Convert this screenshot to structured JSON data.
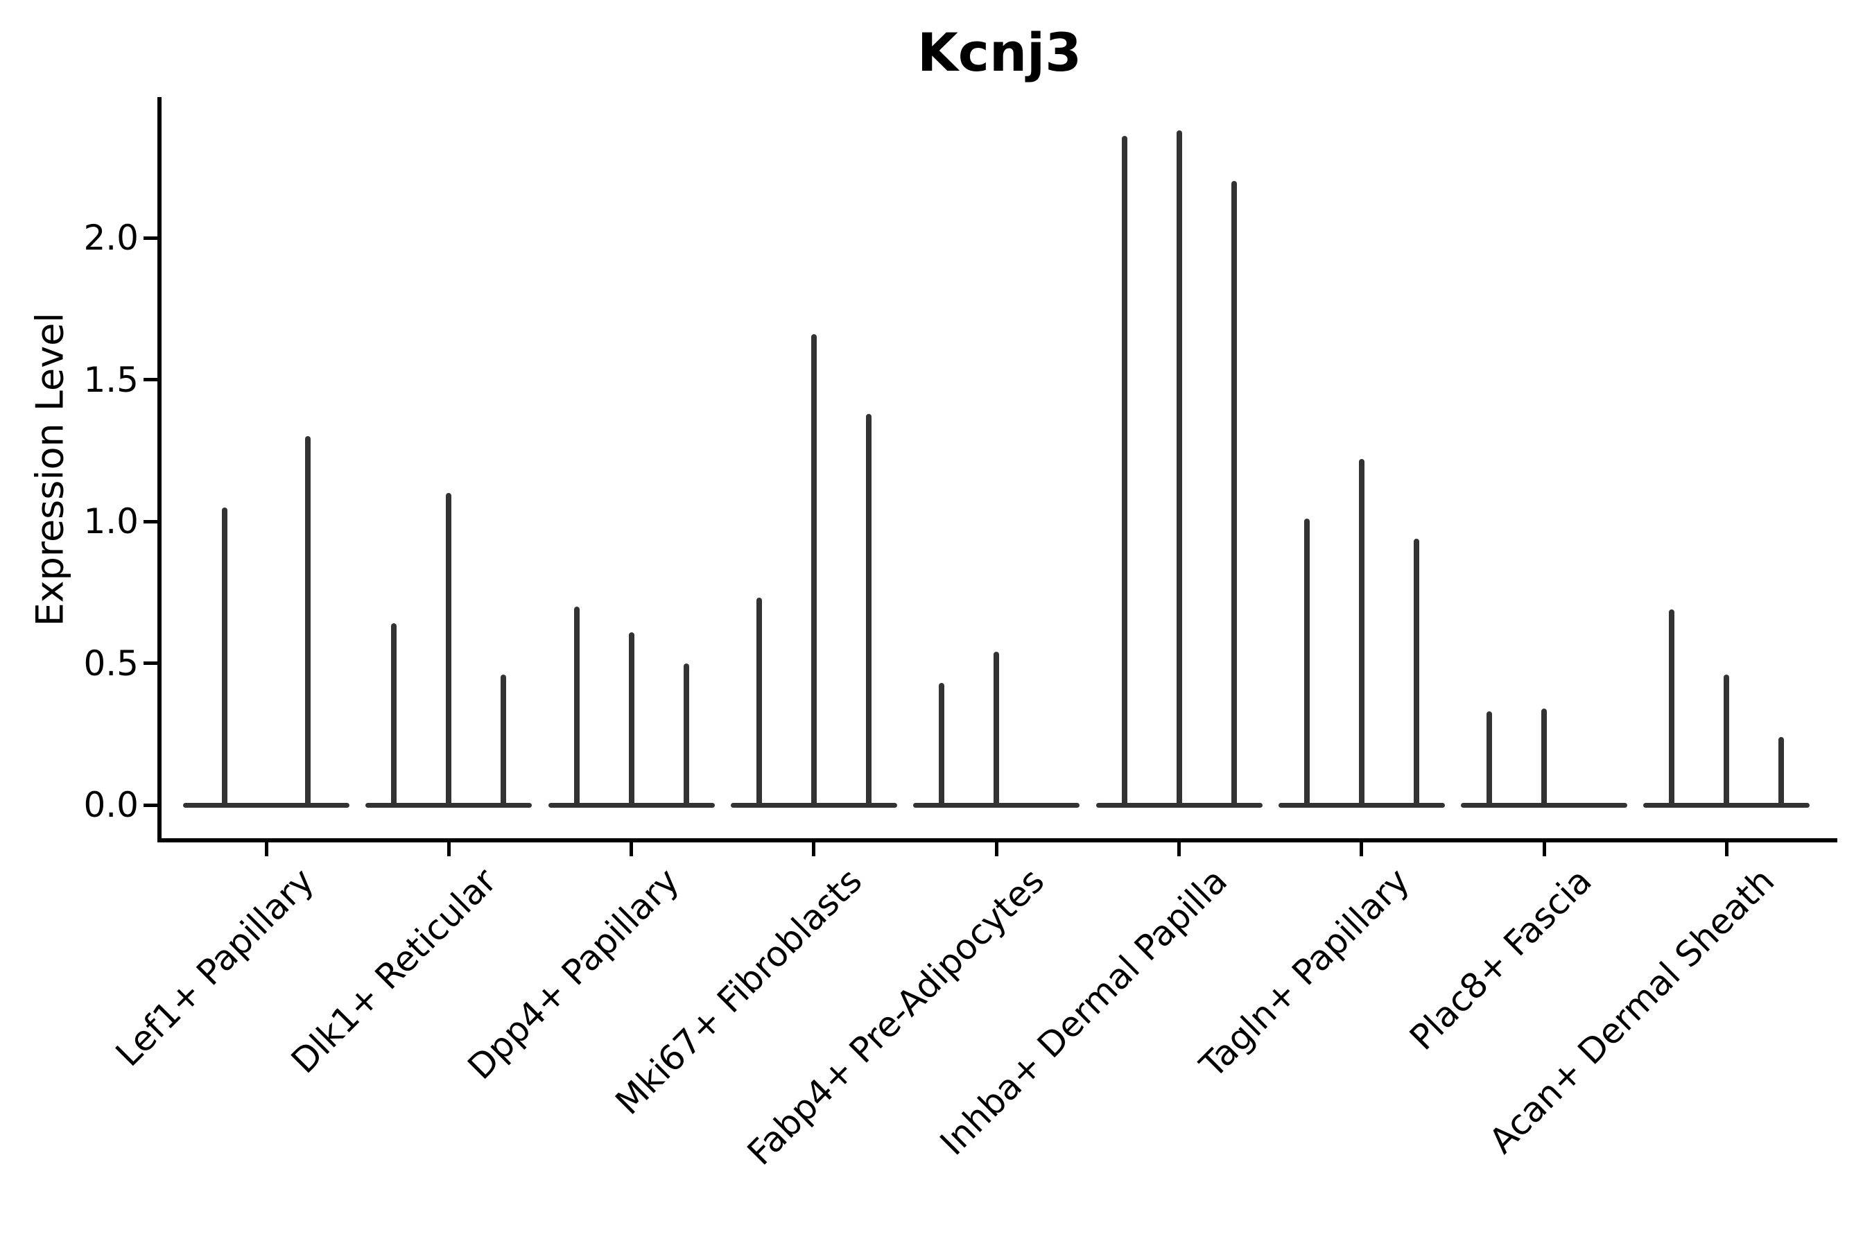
{
  "chart_data": {
    "type": "violin",
    "title": "Kcnj3",
    "ylabel": "Expression Level",
    "xlabel": "",
    "ylim": [
      -0.12,
      2.5
    ],
    "grid": false,
    "legend": false,
    "background_color": "#ffffff",
    "violin_color": "#333333",
    "axis_color": "#000000",
    "yticks": [
      {
        "label": "0.0",
        "value": 0.0
      },
      {
        "label": "0.5",
        "value": 0.5
      },
      {
        "label": "1.0",
        "value": 1.0
      },
      {
        "label": "1.5",
        "value": 1.5
      },
      {
        "label": "2.0",
        "value": 2.0
      }
    ],
    "categories": [
      "Lef1+ Papillary",
      "Dlk1+ Reticular",
      "Dpp4+ Papillary",
      "Mki67+ Fibroblasts",
      "Fabp4+ Pre-Adipocytes",
      "Inhba+ Dermal Papilla",
      "Tagln+ Papillary",
      "Plac8+ Fascia",
      "Acan+ Dermal Sheath"
    ],
    "groups": [
      {
        "label": "Lef1+ Papillary",
        "violin_max_values": [
          1.05,
          1.3
        ]
      },
      {
        "label": "Dlk1+ Reticular",
        "violin_max_values": [
          0.64,
          1.1,
          0.46
        ]
      },
      {
        "label": "Dpp4+ Papillary",
        "violin_max_values": [
          0.7,
          0.61,
          0.5
        ]
      },
      {
        "label": "Mki67+ Fibroblasts",
        "violin_max_values": [
          0.73,
          1.66,
          1.38
        ]
      },
      {
        "label": "Fabp4+ Pre-Adipocytes",
        "violin_max_values": [
          0.43,
          0.54,
          0.0
        ]
      },
      {
        "label": "Inhba+ Dermal Papilla",
        "violin_max_values": [
          2.36,
          2.38,
          2.2
        ]
      },
      {
        "label": "Tagln+ Papillary",
        "violin_max_values": [
          1.01,
          1.22,
          0.94
        ]
      },
      {
        "label": "Plac8+ Fascia",
        "violin_max_values": [
          0.33,
          0.34,
          0.0
        ]
      },
      {
        "label": "Acan+ Dermal Sheath",
        "violin_max_values": [
          0.69,
          0.46,
          0.24
        ]
      }
    ]
  }
}
